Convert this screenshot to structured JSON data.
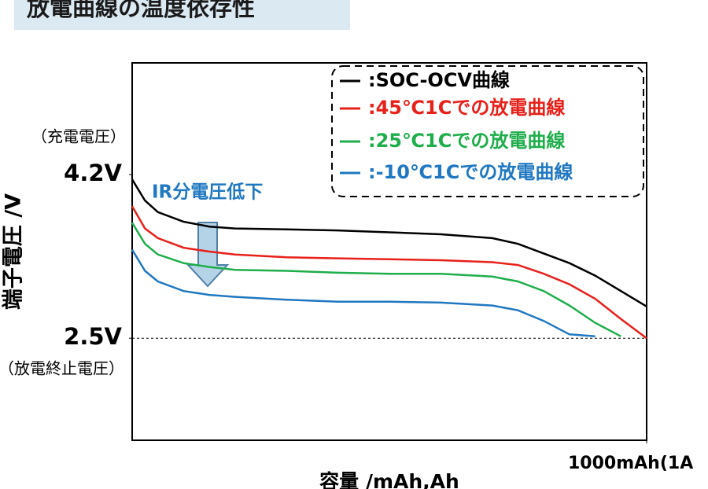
{
  "chart_data": {
    "type": "line",
    "title": "放電曲線の温度依存性",
    "y_label": "端子電圧 /V",
    "x_label": "容量 /mAh,Ah",
    "annotations": [
      "（充電電圧）",
      "（放電終止電圧）",
      "IR分電圧低下"
    ],
    "x": [
      0,
      25,
      50,
      100,
      150,
      200,
      300,
      400,
      500,
      600,
      700,
      750,
      800,
      850,
      900,
      950,
      1000
    ],
    "series": [
      {
        "name": ":SOC-OCV曲線",
        "color": "#000000",
        "values": [
          4.15,
          3.93,
          3.81,
          3.71,
          3.66,
          3.64,
          3.63,
          3.62,
          3.6,
          3.58,
          3.54,
          3.48,
          3.38,
          3.28,
          3.15,
          2.99,
          2.83
        ]
      },
      {
        "name": ":45℃1Cでの放電曲線",
        "color": "#e8201a",
        "values": [
          3.87,
          3.64,
          3.54,
          3.44,
          3.4,
          3.37,
          3.34,
          3.33,
          3.32,
          3.31,
          3.29,
          3.26,
          3.17,
          3.06,
          2.91,
          2.7,
          2.5
        ]
      },
      {
        "name": ":25℃1Cでの放電曲線",
        "color": "#1fae4b",
        "values": [
          3.7,
          3.48,
          3.37,
          3.28,
          3.24,
          3.21,
          3.2,
          3.18,
          3.17,
          3.17,
          3.14,
          3.09,
          2.99,
          2.84,
          2.66,
          2.52,
          null
        ]
      },
      {
        "name": ":-10℃1Cでの放電曲線",
        "color": "#1f78c1",
        "values": [
          3.42,
          3.2,
          3.09,
          2.99,
          2.95,
          2.93,
          2.9,
          2.88,
          2.88,
          2.87,
          2.84,
          2.79,
          2.68,
          2.54,
          2.52,
          null,
          null
        ]
      }
    ],
    "xlim": [
      0,
      1000
    ],
    "xticks": [
      {
        "value": 1000,
        "label": "1000mAh(1A"
      }
    ],
    "ylim": [
      1.44,
      5.36
    ],
    "yticks": [
      {
        "value": 2.5,
        "label": "2.5V"
      },
      {
        "value": 4.2,
        "label": "4.2V"
      }
    ],
    "ref_line": 2.5,
    "grid": false,
    "legend": "top-right"
  }
}
